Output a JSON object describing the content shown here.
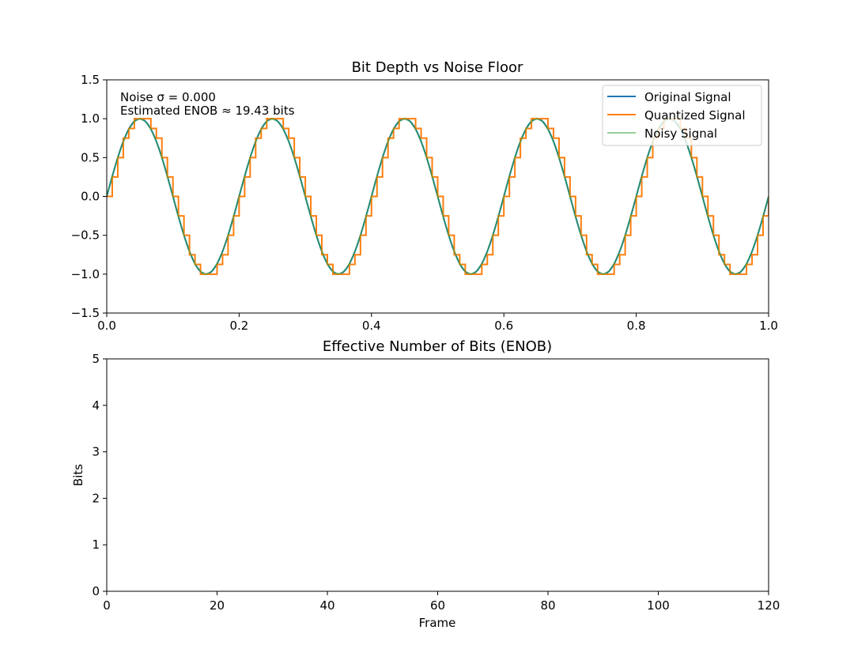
{
  "chart_data": [
    {
      "type": "line",
      "title": "Bit Depth vs Noise Floor",
      "xlabel": "",
      "ylabel": "",
      "xlim": [
        0,
        1
      ],
      "ylim": [
        -1.5,
        1.5
      ],
      "xticks": [
        "0.0",
        "0.2",
        "0.4",
        "0.6",
        "0.8",
        "1.0"
      ],
      "yticks": [
        "−1.5",
        "−1.0",
        "−0.5",
        "0.0",
        "0.5",
        "1.0",
        "1.5"
      ],
      "grid": false,
      "legend_position": "top-right",
      "annotation": {
        "line1": "Noise σ = 0.000",
        "line2": "Estimated ENOB ≈ 19.43 bits"
      },
      "signal": {
        "function": "sine",
        "frequency": 5,
        "amplitude": 1.0,
        "quantization_levels": 8,
        "samples": 120
      },
      "series": [
        {
          "name": "Original Signal",
          "color": "#1f77b4",
          "alpha": 1.0
        },
        {
          "name": "Quantized Signal",
          "color": "#ff7f0e",
          "alpha": 1.0
        },
        {
          "name": "Noisy Signal",
          "color": "#2ca02c",
          "alpha": 0.5
        }
      ]
    },
    {
      "type": "line",
      "title": "Effective Number of Bits (ENOB)",
      "xlabel": "Frame",
      "ylabel": "Bits",
      "xlim": [
        0,
        120
      ],
      "ylim": [
        0,
        5
      ],
      "xticks": [
        "0",
        "20",
        "40",
        "60",
        "80",
        "100",
        "120"
      ],
      "yticks": [
        "0",
        "1",
        "2",
        "3",
        "4",
        "5"
      ],
      "grid": false,
      "series": []
    }
  ]
}
